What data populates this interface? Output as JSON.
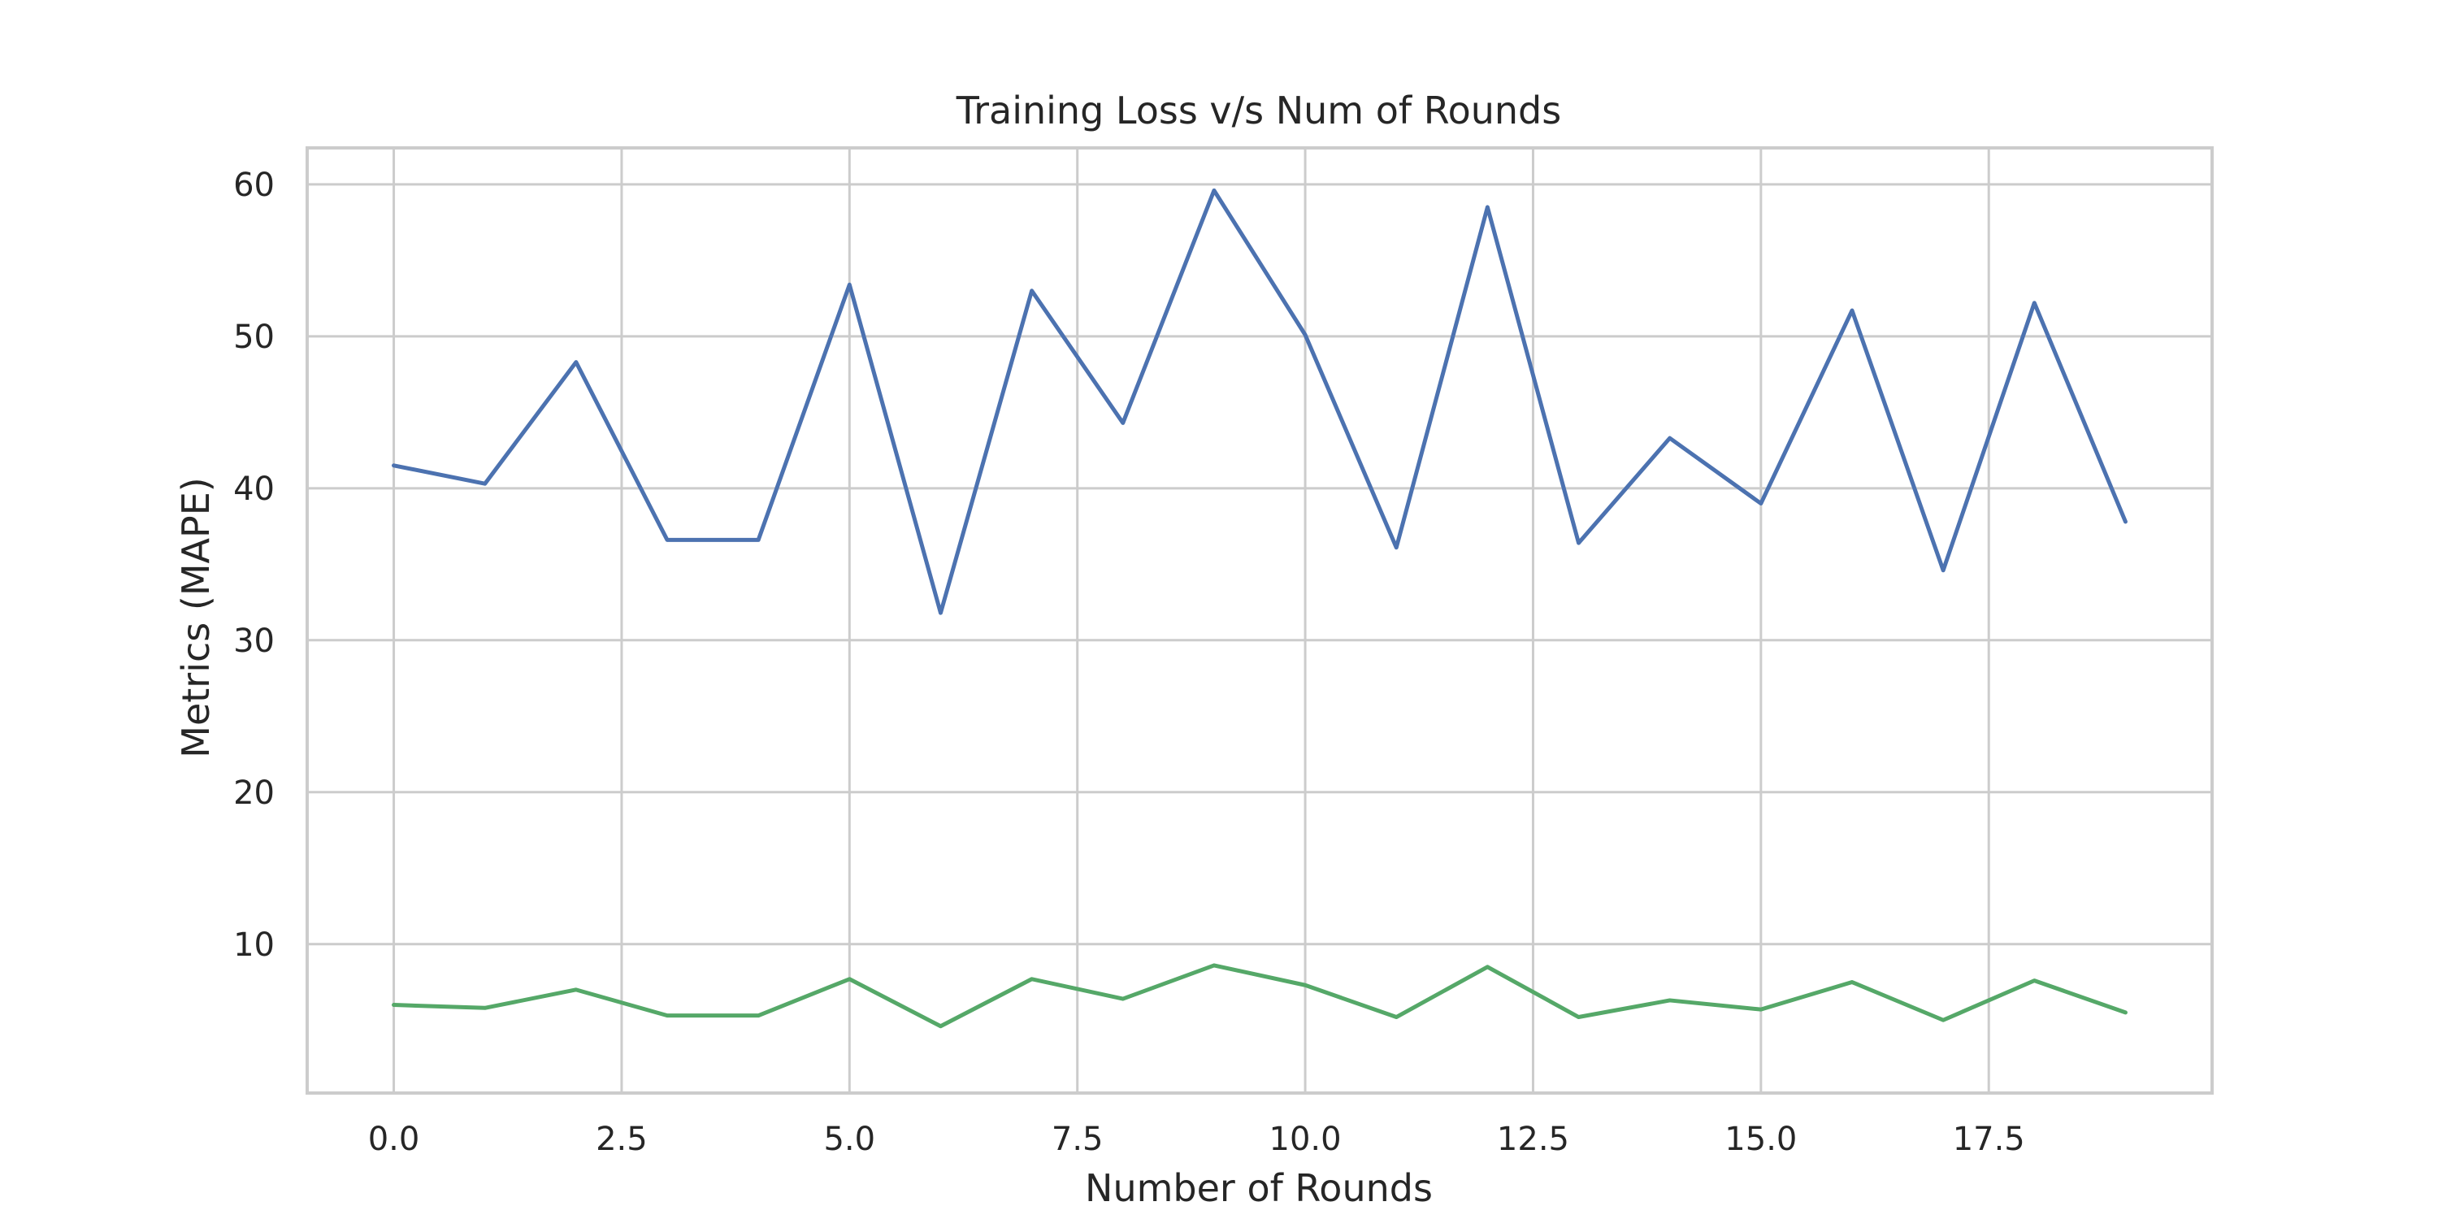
{
  "chart_data": {
    "type": "line",
    "title": "Training Loss v/s Num of Rounds",
    "xlabel": "Number of Rounds",
    "ylabel": "Metrics (MAPE)",
    "xlim": [
      -0.95,
      19.95
    ],
    "ylim": [
      0.2,
      62.4
    ],
    "xticks": [
      0.0,
      2.5,
      5.0,
      7.5,
      10.0,
      12.5,
      15.0,
      17.5
    ],
    "xtick_labels": [
      "0.0",
      "2.5",
      "5.0",
      "7.5",
      "10.0",
      "12.5",
      "15.0",
      "17.5"
    ],
    "yticks": [
      10,
      20,
      30,
      40,
      50,
      60
    ],
    "ytick_labels": [
      "10",
      "20",
      "30",
      "40",
      "50",
      "60"
    ],
    "grid": true,
    "legend": false,
    "x": [
      0,
      1,
      2,
      3,
      4,
      5,
      6,
      7,
      8,
      9,
      10,
      11,
      12,
      13,
      14,
      15,
      16,
      17,
      18,
      19
    ],
    "series": [
      {
        "color": "#4c72b0",
        "values": [
          41.5,
          40.3,
          48.3,
          36.6,
          36.6,
          53.4,
          31.8,
          53.0,
          44.3,
          59.6,
          50.1,
          36.1,
          58.5,
          36.4,
          43.3,
          39.0,
          51.7,
          34.6,
          52.2,
          37.8
        ]
      },
      {
        "color": "#55a868",
        "values": [
          6.0,
          5.8,
          7.0,
          5.3,
          5.3,
          7.7,
          4.6,
          7.7,
          6.4,
          8.6,
          7.3,
          5.2,
          8.5,
          5.2,
          6.3,
          5.7,
          7.5,
          5.0,
          7.6,
          5.5
        ]
      }
    ]
  }
}
